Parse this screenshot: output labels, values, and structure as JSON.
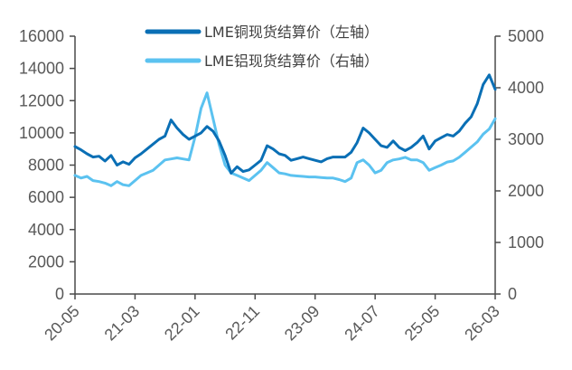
{
  "chart_data": {
    "type": "line",
    "title": "",
    "xlabel": "",
    "ylabel": "",
    "y2label": "",
    "x_ticks": [
      "20-05",
      "21-03",
      "22-01",
      "22-11",
      "23-09",
      "24-07",
      "25-05",
      "26-03"
    ],
    "ylim": [
      0,
      16000
    ],
    "y_ticks": [
      0,
      2000,
      4000,
      6000,
      8000,
      10000,
      12000,
      14000,
      16000
    ],
    "y2lim": [
      0,
      5000
    ],
    "y2_ticks": [
      0,
      1000,
      2000,
      3000,
      4000,
      5000
    ],
    "grid": false,
    "legend_position": "top-center",
    "series": [
      {
        "name": "LME铜现货结算价（左轴）",
        "axis": "left",
        "color": "#0a6fb5",
        "points": [
          [
            "20-05",
            9150
          ],
          [
            "20-06",
            8950
          ],
          [
            "20-07",
            8700
          ],
          [
            "20-08",
            8500
          ],
          [
            "20-09",
            8550
          ],
          [
            "20-10",
            8250
          ],
          [
            "20-11",
            8600
          ],
          [
            "20-12",
            8000
          ],
          [
            "21-01",
            8200
          ],
          [
            "21-02",
            8050
          ],
          [
            "21-03",
            8450
          ],
          [
            "21-04",
            8700
          ],
          [
            "21-05",
            9000
          ],
          [
            "21-06",
            9300
          ],
          [
            "21-07",
            9600
          ],
          [
            "21-08",
            9800
          ],
          [
            "21-09",
            10800
          ],
          [
            "21-10",
            10300
          ],
          [
            "21-11",
            9900
          ],
          [
            "21-12",
            9600
          ],
          [
            "22-01",
            9800
          ],
          [
            "22-02",
            10000
          ],
          [
            "22-03",
            10400
          ],
          [
            "22-04",
            10100
          ],
          [
            "22-05",
            9500
          ],
          [
            "22-06",
            8600
          ],
          [
            "22-07",
            7500
          ],
          [
            "22-08",
            7900
          ],
          [
            "22-09",
            7600
          ],
          [
            "22-10",
            7700
          ],
          [
            "22-11",
            8000
          ],
          [
            "22-12",
            8300
          ],
          [
            "23-01",
            9200
          ],
          [
            "23-02",
            9000
          ],
          [
            "23-03",
            8700
          ],
          [
            "23-04",
            8600
          ],
          [
            "23-05",
            8300
          ],
          [
            "23-06",
            8400
          ],
          [
            "23-07",
            8500
          ],
          [
            "23-08",
            8400
          ],
          [
            "23-09",
            8300
          ],
          [
            "23-10",
            8200
          ],
          [
            "23-11",
            8400
          ],
          [
            "23-12",
            8500
          ],
          [
            "24-01",
            8500
          ],
          [
            "24-02",
            8500
          ],
          [
            "24-03",
            8800
          ],
          [
            "24-04",
            9400
          ],
          [
            "24-05",
            10300
          ],
          [
            "24-06",
            10000
          ],
          [
            "24-07",
            9600
          ],
          [
            "24-08",
            9200
          ],
          [
            "24-09",
            9100
          ],
          [
            "24-10",
            9500
          ],
          [
            "24-11",
            9100
          ],
          [
            "24-12",
            8900
          ],
          [
            "25-01",
            9100
          ],
          [
            "25-02",
            9400
          ],
          [
            "25-03",
            9800
          ],
          [
            "25-04",
            9000
          ],
          [
            "25-05",
            9500
          ],
          [
            "25-06",
            9700
          ],
          [
            "25-07",
            9900
          ],
          [
            "25-08",
            9800
          ],
          [
            "25-09",
            10100
          ],
          [
            "25-10",
            10600
          ],
          [
            "25-11",
            11000
          ],
          [
            "25-12",
            11800
          ],
          [
            "26-01",
            13000
          ],
          [
            "26-02",
            13600
          ],
          [
            "26-03",
            12700
          ]
        ]
      },
      {
        "name": "LME铝现货结算价（右轴）",
        "axis": "right",
        "color": "#5bc2f0",
        "points": [
          [
            "20-05",
            2300
          ],
          [
            "20-06",
            2250
          ],
          [
            "20-07",
            2280
          ],
          [
            "20-08",
            2200
          ],
          [
            "20-09",
            2180
          ],
          [
            "20-10",
            2150
          ],
          [
            "20-11",
            2100
          ],
          [
            "20-12",
            2180
          ],
          [
            "21-01",
            2120
          ],
          [
            "21-02",
            2100
          ],
          [
            "21-03",
            2200
          ],
          [
            "21-04",
            2300
          ],
          [
            "21-05",
            2350
          ],
          [
            "21-06",
            2400
          ],
          [
            "21-07",
            2500
          ],
          [
            "21-08",
            2600
          ],
          [
            "21-09",
            2620
          ],
          [
            "21-10",
            2640
          ],
          [
            "21-11",
            2620
          ],
          [
            "21-12",
            2600
          ],
          [
            "22-01",
            3050
          ],
          [
            "22-02",
            3600
          ],
          [
            "22-03",
            3900
          ],
          [
            "22-04",
            3400
          ],
          [
            "22-05",
            2900
          ],
          [
            "22-06",
            2500
          ],
          [
            "22-07",
            2350
          ],
          [
            "22-08",
            2300
          ],
          [
            "22-09",
            2250
          ],
          [
            "22-10",
            2200
          ],
          [
            "22-11",
            2300
          ],
          [
            "22-12",
            2400
          ],
          [
            "23-01",
            2550
          ],
          [
            "23-02",
            2450
          ],
          [
            "23-03",
            2350
          ],
          [
            "23-04",
            2330
          ],
          [
            "23-05",
            2300
          ],
          [
            "23-06",
            2290
          ],
          [
            "23-07",
            2280
          ],
          [
            "23-08",
            2270
          ],
          [
            "23-09",
            2270
          ],
          [
            "23-10",
            2260
          ],
          [
            "23-11",
            2250
          ],
          [
            "23-12",
            2250
          ],
          [
            "24-01",
            2220
          ],
          [
            "24-02",
            2180
          ],
          [
            "24-03",
            2250
          ],
          [
            "24-04",
            2550
          ],
          [
            "24-05",
            2600
          ],
          [
            "24-06",
            2500
          ],
          [
            "24-07",
            2350
          ],
          [
            "24-08",
            2400
          ],
          [
            "24-09",
            2550
          ],
          [
            "24-10",
            2600
          ],
          [
            "24-11",
            2620
          ],
          [
            "24-12",
            2650
          ],
          [
            "25-01",
            2600
          ],
          [
            "25-02",
            2600
          ],
          [
            "25-03",
            2550
          ],
          [
            "25-04",
            2400
          ],
          [
            "25-05",
            2450
          ],
          [
            "25-06",
            2500
          ],
          [
            "25-07",
            2560
          ],
          [
            "25-08",
            2580
          ],
          [
            "25-09",
            2650
          ],
          [
            "25-10",
            2750
          ],
          [
            "25-11",
            2850
          ],
          [
            "25-12",
            2950
          ],
          [
            "26-01",
            3100
          ],
          [
            "26-02",
            3200
          ],
          [
            "26-03",
            3400
          ]
        ]
      }
    ]
  }
}
